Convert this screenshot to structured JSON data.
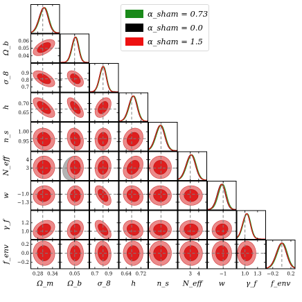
{
  "figure": {
    "kind": "triangle corner plot",
    "parameters": [
      {
        "name": "Ω_m",
        "axis": [
          0.25,
          0.37
        ],
        "xticks": [
          "0.28",
          "0.34"
        ],
        "yticks": [],
        "marker": 0.3
      },
      {
        "name": "Ω_b",
        "axis": [
          0.03,
          0.07
        ],
        "xticks": [
          "0.05"
        ],
        "yticks": [
          "0.06",
          "0.05",
          "0.04"
        ],
        "marker": 0.05
      },
      {
        "name": "σ_8",
        "axis": [
          0.62,
          1.05
        ],
        "xticks": [
          "0.7",
          "0.9"
        ],
        "yticks": [
          "0.9",
          "0.8",
          "0.7"
        ],
        "marker": 0.82
      },
      {
        "name": "h",
        "axis": [
          0.6,
          0.76
        ],
        "xticks": [
          "0.64",
          "0.72"
        ],
        "yticks": [
          "0.70",
          "0.65"
        ],
        "marker": 0.67
      },
      {
        "name": "n_s",
        "axis": [
          0.9,
          1.05
        ],
        "xticks": [],
        "yticks": [
          "1.00",
          "0.95"
        ],
        "marker": 0.965
      },
      {
        "name": "N_eff",
        "axis": [
          1.5,
          5.0
        ],
        "xticks": [
          "3",
          "4"
        ],
        "yticks": [
          "4",
          "3"
        ],
        "marker": 3.0
      },
      {
        "name": "w",
        "axis": [
          -1.6,
          -0.5
        ],
        "xticks": [
          "−1"
        ],
        "yticks": [
          "−1.0",
          "−1.3"
        ],
        "marker": -1.0
      },
      {
        "name": "γ_f",
        "axis": [
          0.8,
          1.5
        ],
        "xticks": [
          "1.0",
          "1.3"
        ],
        "yticks": [
          "1.2",
          "1.0"
        ],
        "marker": 1.0
      },
      {
        "name": "f_env",
        "axis": [
          -0.35,
          0.3
        ],
        "xticks": [
          "−0.2",
          "0.2"
        ],
        "yticks": [
          "0.2",
          "0.0",
          "−0.2"
        ],
        "marker": 0.0
      }
    ],
    "axis_labels": [
      "Ω_m",
      "Ω_b",
      "σ_8",
      "h",
      "n_s",
      "N_eff",
      "w",
      "γ_f",
      "f_env"
    ],
    "legend": {
      "placement": "top-right",
      "entries": [
        {
          "label": "α_sham = 0.73",
          "color": "#1a8a1a"
        },
        {
          "label": "α_sham = 0.0",
          "color": "#000000"
        },
        {
          "label": "α_sham = 1.5",
          "color": "#ee1111"
        }
      ]
    },
    "colors": {
      "red_outer": "#eb8a8a",
      "red_inner": "#de1f1f",
      "gray_outer": "#b3b3b3",
      "gray_inner": "#7a7a7a",
      "marker_line": "#7f7f7f"
    }
  },
  "chart_data": {
    "type": "scatter",
    "subtype": "corner-posterior",
    "parameters": [
      "Ω_m",
      "Ω_b",
      "σ_8",
      "h",
      "n_s",
      "N_eff",
      "w",
      "γ_f",
      "f_env"
    ],
    "fiducial": [
      0.3,
      0.05,
      0.82,
      0.67,
      0.965,
      3.0,
      -1.0,
      1.0,
      0.0
    ],
    "means": [
      0.305,
      0.051,
      0.82,
      0.678,
      0.962,
      3.1,
      -1.05,
      1.04,
      0.0
    ],
    "sigmas": [
      0.018,
      0.0045,
      0.048,
      0.022,
      0.023,
      0.55,
      0.15,
      0.09,
      0.11
    ],
    "correlations": [
      [
        1.0,
        0.55,
        -0.55,
        -0.65,
        -0.1,
        0.0,
        0.05,
        0.3,
        -0.05
      ],
      [
        0.55,
        1.0,
        -0.45,
        -0.65,
        -0.2,
        0.0,
        0.0,
        0.2,
        0.0
      ],
      [
        -0.55,
        -0.45,
        1.0,
        0.4,
        0.05,
        0.1,
        -0.55,
        -0.55,
        -0.1
      ],
      [
        -0.65,
        -0.65,
        0.4,
        1.0,
        0.2,
        0.3,
        -0.15,
        -0.15,
        0.0
      ],
      [
        -0.1,
        -0.2,
        0.05,
        0.2,
        1.0,
        0.0,
        0.0,
        0.0,
        0.0
      ],
      [
        0.0,
        0.0,
        0.1,
        0.3,
        0.0,
        1.0,
        0.0,
        0.0,
        0.0
      ],
      [
        0.05,
        0.0,
        -0.55,
        -0.15,
        0.0,
        0.0,
        1.0,
        0.1,
        0.0
      ],
      [
        0.3,
        0.2,
        -0.55,
        -0.15,
        0.0,
        0.0,
        0.1,
        1.0,
        0.0
      ],
      [
        -0.05,
        0.0,
        -0.1,
        0.0,
        0.0,
        0.0,
        0.0,
        0.0,
        1.0
      ]
    ],
    "series": [
      {
        "name": "α_sham = 0.73",
        "color": "#1a8a1a",
        "mean_shift": [
          0,
          0,
          -0.004,
          -0.002,
          0,
          0,
          0.02,
          0.0,
          0
        ]
      },
      {
        "name": "α_sham = 0.0",
        "color": "#000000",
        "mean_shift": [
          0,
          0,
          0.004,
          0.001,
          0,
          0,
          -0.01,
          0.01,
          0
        ]
      },
      {
        "name": "α_sham = 1.5",
        "color": "#ee1111",
        "mean_shift": [
          0,
          0,
          0,
          0,
          0,
          0,
          0,
          0,
          0
        ]
      }
    ],
    "extra_gray_contour": {
      "row": 5,
      "col": 1,
      "center": [
        0.047,
        3.0
      ],
      "sigma": [
        0.006,
        0.65
      ],
      "corr": 0.2
    }
  }
}
